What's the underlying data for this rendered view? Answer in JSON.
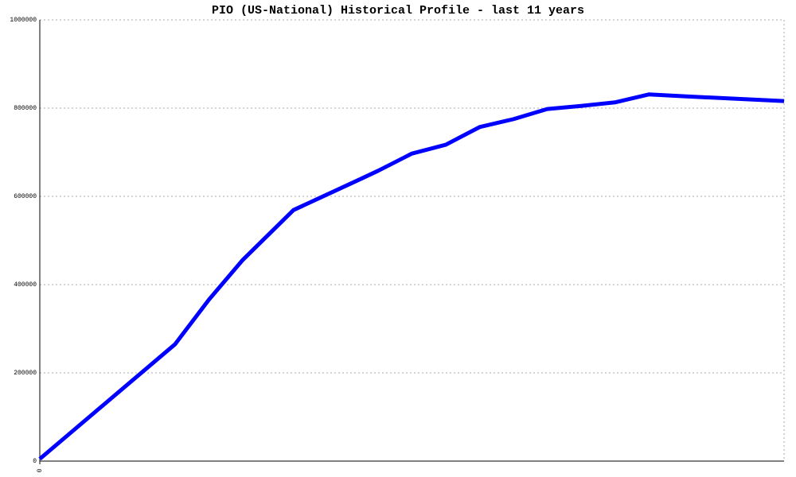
{
  "chart_data": {
    "type": "line",
    "title": "PIO (US-National) Historical Profile - last 11 years",
    "x": [
      0,
      2,
      2.5,
      3,
      3.75,
      4.75,
      5,
      5.5,
      6,
      6.5,
      7,
      7.5,
      8,
      8.5,
      9,
      9.5,
      11
    ],
    "series": [
      {
        "color": "#0000ff",
        "values": [
          5000,
          265000,
          366000,
          456000,
          569000,
          640000,
          658000,
          697000,
          717000,
          757000,
          775000,
          798000,
          805000,
          813000,
          831000,
          827000,
          816000
        ]
      }
    ],
    "xlim": [
      0,
      11
    ],
    "xticks": [
      0
    ],
    "ylim": [
      0,
      1000000
    ],
    "yticks": [
      0,
      200000,
      400000,
      600000,
      800000,
      1000000
    ],
    "grid": true
  }
}
